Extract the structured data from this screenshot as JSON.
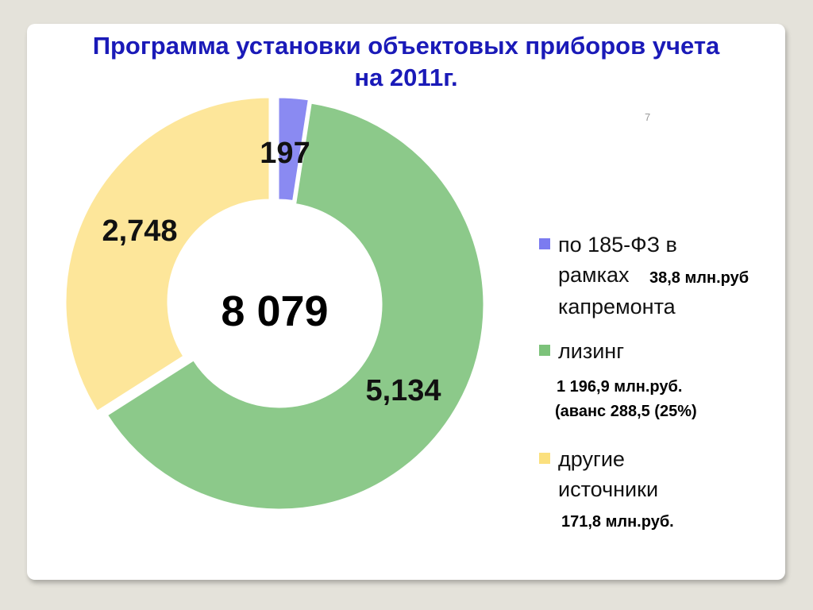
{
  "title_line1": "Программа установки объектовых приборов учета",
  "title_line2": "на 2011г.",
  "page_number": "7",
  "center_label": "8 079",
  "chart_data": {
    "type": "pie",
    "donut": true,
    "total_label": "8 079",
    "categories": [
      "по 185-ФЗ в рамках капремонта",
      "лизинг",
      "другие источники"
    ],
    "values": [
      197,
      5134,
      2748
    ],
    "value_labels": [
      "197",
      "5,134",
      "2,748"
    ],
    "colors": [
      "#8a8af2",
      "#8cc98a",
      "#fde69a"
    ],
    "legend_position": "right"
  },
  "legend": [
    {
      "line1": "по 185-ФЗ в",
      "line2": "рамках",
      "line3": "капремонта",
      "note": "38,8 млн.руб",
      "color": "#7b7bf0"
    },
    {
      "line1": "лизинг",
      "note1": "1 196,9 млн.руб.",
      "note2": "(аванс 288,5 (25%)",
      "color": "#7cc27a"
    },
    {
      "line1": "другие",
      "line2": "источники",
      "note": "171,8 млн.руб.",
      "color": "#fbe07e"
    }
  ]
}
